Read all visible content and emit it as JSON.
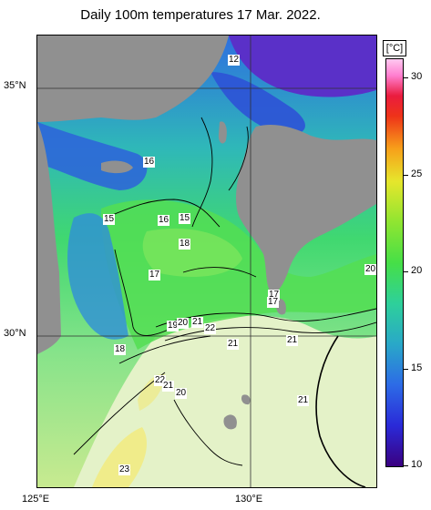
{
  "title": "Daily 100m temperatures 17 Mar. 2022.",
  "axes": {
    "lat_labels": [
      "35°N",
      "30°N"
    ],
    "lon_labels": [
      "125°E",
      "130°E"
    ]
  },
  "colorbar": {
    "unit": "[°C]",
    "ticks": [
      "30",
      "25",
      "20",
      "15",
      "10"
    ],
    "range": [
      10,
      31
    ]
  },
  "isotherm_labels": [
    "12",
    "16",
    "15",
    "16",
    "15",
    "18",
    "17",
    "17",
    "18",
    "17",
    "19",
    "20",
    "21",
    "22",
    "21",
    "21",
    "22",
    "21",
    "20",
    "21",
    "23",
    "20"
  ],
  "colors": {
    "land": "#909090",
    "contour": "#000000"
  }
}
